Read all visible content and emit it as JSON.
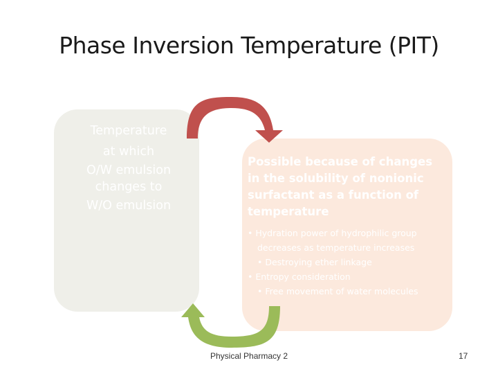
{
  "title": "Phase Inversion Temperature (PIT)",
  "left_box": {
    "lines": [
      "Temperature",
      "at which",
      "O/W emulsion",
      "changes to",
      "W/O emulsion"
    ]
  },
  "right_box": {
    "title_lines": [
      "Possible because of changes",
      "in the solubility of nonionic",
      "surfactant as a function of",
      "temperature"
    ],
    "bullets": [
      {
        "level": 1,
        "text": "• Hydration power of hydrophilic group"
      },
      {
        "level": 1,
        "text": "decreases as temperature increases",
        "continuation": true
      },
      {
        "level": 2,
        "text": "• Destroying ether linkage"
      },
      {
        "level": 1,
        "text": "• Entropy consideration"
      },
      {
        "level": 2,
        "text": "• Free movement of water molecules"
      }
    ]
  },
  "arrows": {
    "top": {
      "color": "#c0504d",
      "name": "red-curved-arrow"
    },
    "bottom": {
      "color": "#9bbb59",
      "name": "green-curved-arrow"
    }
  },
  "footer": {
    "text": "Physical Pharmacy 2",
    "page_number": "17"
  }
}
